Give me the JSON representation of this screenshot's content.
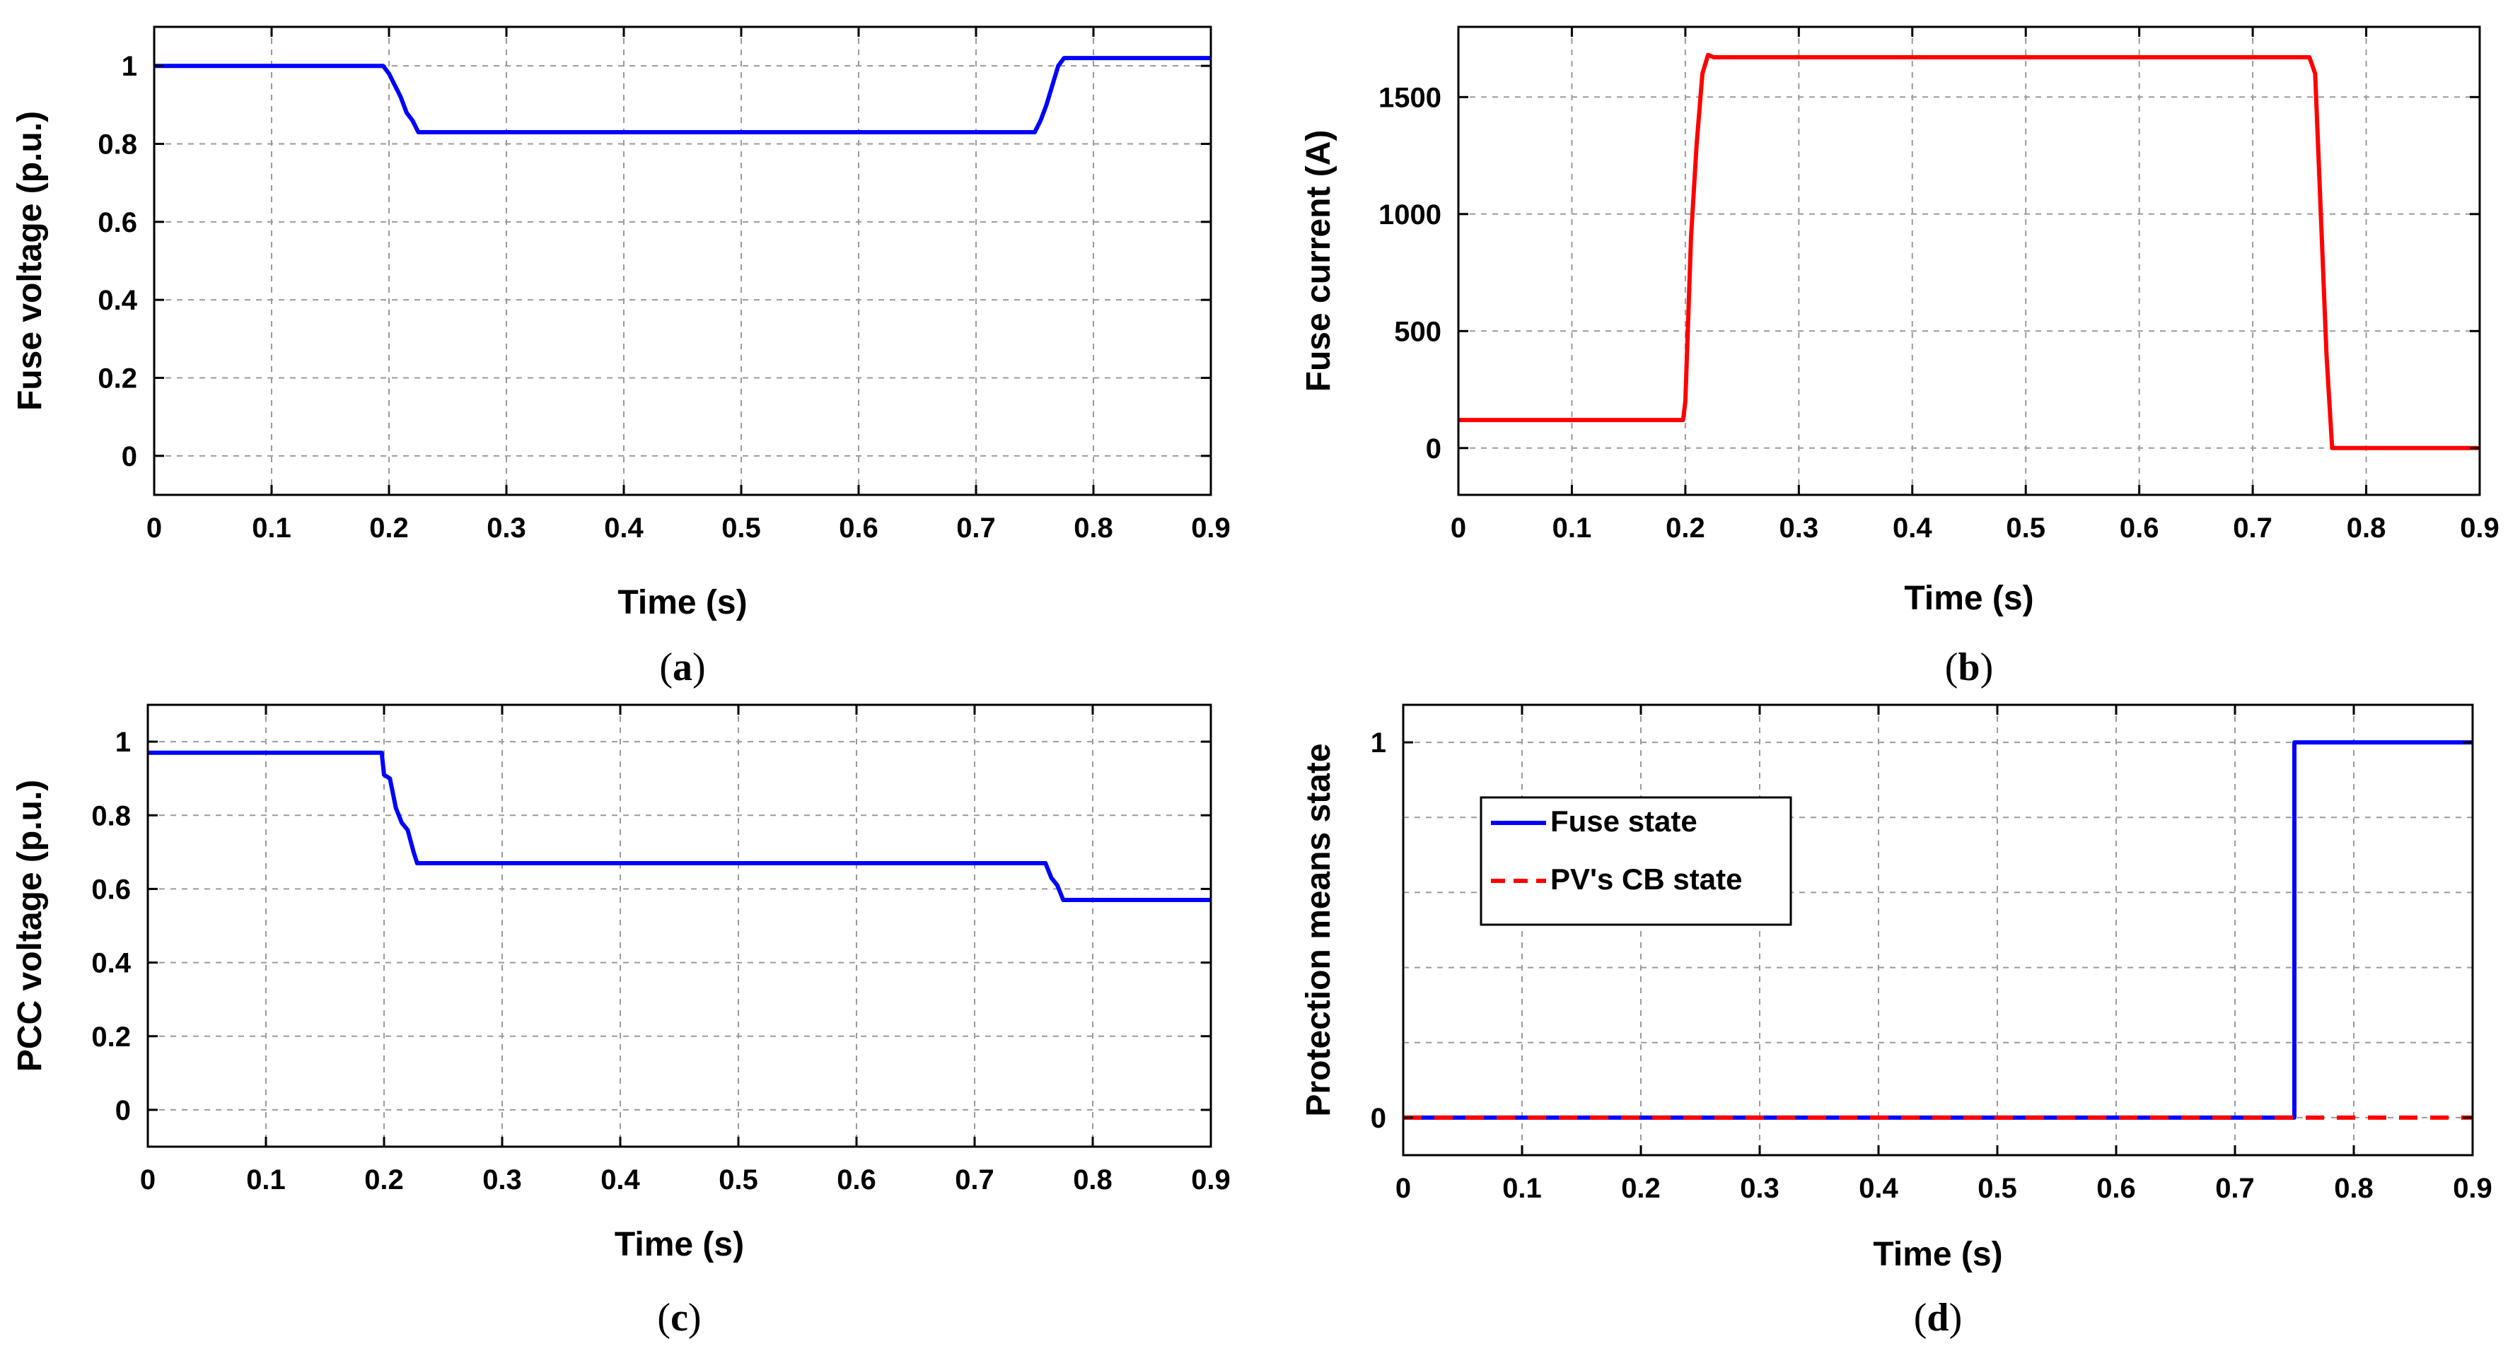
{
  "chart_data": [
    {
      "id": "a",
      "type": "line",
      "caption": "a",
      "xlabel": "Time (s)",
      "ylabel": "Fuse voltage (p.u.)",
      "xlim": [
        0,
        0.9
      ],
      "ylim": [
        -0.1,
        1.1
      ],
      "xticks": [
        0,
        0.1,
        0.2,
        0.3,
        0.4,
        0.5,
        0.6,
        0.7,
        0.8,
        0.9
      ],
      "yticks": [
        0,
        0.2,
        0.4,
        0.6,
        0.8,
        1
      ],
      "grid": true,
      "series": [
        {
          "name": "Fuse voltage",
          "color": "#0000ff",
          "dash": "solid",
          "x": [
            0,
            0.195,
            0.2,
            0.205,
            0.21,
            0.215,
            0.22,
            0.225,
            0.75,
            0.755,
            0.76,
            0.765,
            0.77,
            0.775,
            0.9
          ],
          "y": [
            1.0,
            1.0,
            0.98,
            0.95,
            0.92,
            0.88,
            0.86,
            0.83,
            0.83,
            0.86,
            0.9,
            0.95,
            1.0,
            1.02,
            1.02
          ]
        }
      ]
    },
    {
      "id": "b",
      "type": "line",
      "caption": "b",
      "xlabel": "Time (s)",
      "ylabel": "Fuse current (A)",
      "xlim": [
        0,
        0.9
      ],
      "ylim": [
        -200,
        1800
      ],
      "xticks": [
        0,
        0.1,
        0.2,
        0.3,
        0.4,
        0.5,
        0.6,
        0.7,
        0.8,
        0.9
      ],
      "yticks": [
        0,
        500,
        1000,
        1500
      ],
      "grid": true,
      "series": [
        {
          "name": "Fuse current",
          "color": "#ff0000",
          "dash": "solid",
          "x": [
            0,
            0.198,
            0.2,
            0.205,
            0.21,
            0.215,
            0.22,
            0.225,
            0.75,
            0.755,
            0.76,
            0.765,
            0.77,
            0.9
          ],
          "y": [
            120,
            120,
            200,
            900,
            1300,
            1600,
            1680,
            1670,
            1670,
            1600,
            1000,
            400,
            0,
            0
          ]
        }
      ]
    },
    {
      "id": "c",
      "type": "line",
      "caption": "c",
      "xlabel": "Time (s)",
      "ylabel": "PCC voltage (p.u.)",
      "xlim": [
        0,
        0.9
      ],
      "ylim": [
        -0.1,
        1.1
      ],
      "xticks": [
        0,
        0.1,
        0.2,
        0.3,
        0.4,
        0.5,
        0.6,
        0.7,
        0.8,
        0.9
      ],
      "yticks": [
        0,
        0.2,
        0.4,
        0.6,
        0.8,
        1
      ],
      "grid": true,
      "series": [
        {
          "name": "PCC voltage",
          "color": "#0000ff",
          "dash": "solid",
          "x": [
            0,
            0.198,
            0.2,
            0.205,
            0.21,
            0.215,
            0.22,
            0.225,
            0.228,
            0.76,
            0.765,
            0.77,
            0.775,
            0.9
          ],
          "y": [
            0.97,
            0.97,
            0.91,
            0.9,
            0.82,
            0.78,
            0.76,
            0.7,
            0.67,
            0.67,
            0.63,
            0.61,
            0.57,
            0.57
          ]
        }
      ]
    },
    {
      "id": "d",
      "type": "line",
      "caption": "d",
      "xlabel": "Time (s)",
      "ylabel": "Protection means state",
      "xlim": [
        0,
        0.9
      ],
      "ylim": [
        -0.1,
        1.1
      ],
      "xticks": [
        0,
        0.1,
        0.2,
        0.3,
        0.4,
        0.5,
        0.6,
        0.7,
        0.8,
        0.9
      ],
      "yticks": [
        0,
        1
      ],
      "ygrid": [
        0,
        0.2,
        0.4,
        0.6,
        0.8,
        1
      ],
      "grid": true,
      "legend": "upper-left",
      "series": [
        {
          "name": "Fuse state",
          "color": "#0000ff",
          "dash": "solid",
          "x": [
            0,
            0.75,
            0.75,
            0.9
          ],
          "y": [
            0,
            0,
            1,
            1
          ]
        },
        {
          "name": "PV's CB state",
          "color": "#ff0000",
          "dash": "dashed",
          "x": [
            0,
            0.9
          ],
          "y": [
            0,
            0
          ]
        }
      ]
    }
  ]
}
